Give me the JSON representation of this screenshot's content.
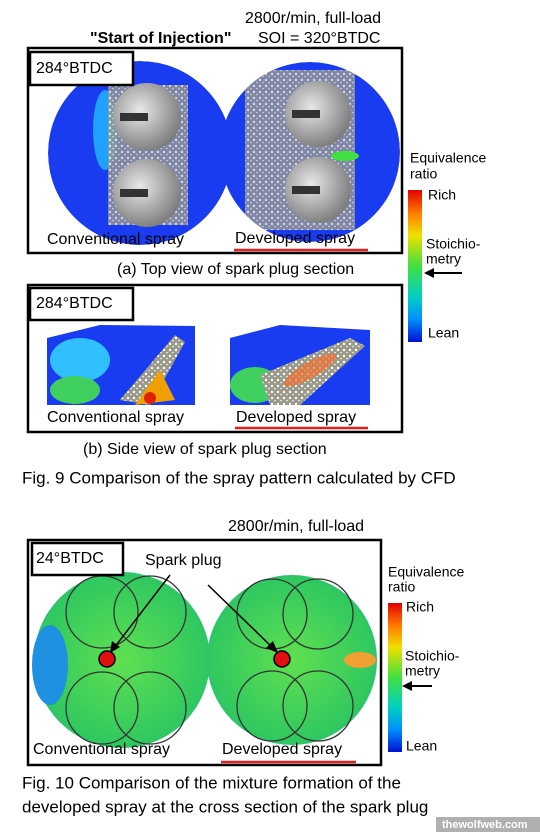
{
  "figure9": {
    "condition": "2800r/min, full-load",
    "injection_label": "\"Start of Injection\"",
    "injection_value": "SOI = 320°BTDC",
    "panel_a": {
      "angle": "284°BTDC",
      "left": "Conventional spray",
      "right": "Developed spray",
      "caption": "(a) Top view of spark plug section"
    },
    "panel_b": {
      "angle": "284°BTDC",
      "left": "Conventional spray",
      "right": "Developed spray",
      "caption": "(b) Side view of spark plug section"
    },
    "legend": {
      "title": [
        "Equivalence",
        "ratio"
      ],
      "rich": "Rich",
      "stoich": [
        "Stoichio-",
        "metry"
      ],
      "lean": "Lean"
    },
    "caption": "Fig. 9 Comparison of the spray pattern calculated by CFD"
  },
  "figure10": {
    "condition": "2800r/min, full-load",
    "angle": "24°BTDC",
    "pointer": "Spark plug",
    "left": "Conventional spray",
    "right": "Developed spray",
    "legend": {
      "title": [
        "Equivalence",
        "ratio"
      ],
      "rich": "Rich",
      "stoich": [
        "Stoichio-",
        "metry"
      ],
      "lean": "Lean"
    },
    "caption": [
      "Fig. 10 Comparison of the mixture formation of the",
      "developed spray at the cross section of the spark plug"
    ]
  },
  "watermark": "thewolfweb.com"
}
